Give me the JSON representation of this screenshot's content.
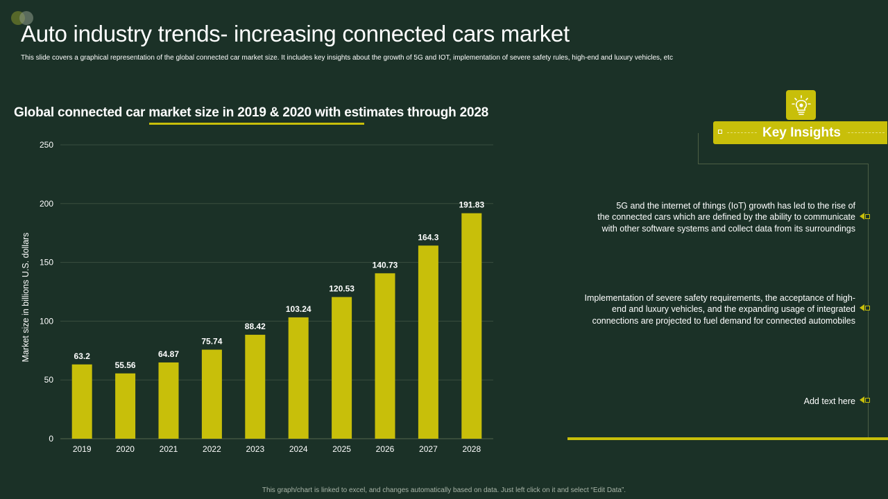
{
  "slide": {
    "title": "Auto industry trends- increasing connected cars market",
    "subtitle": "This slide covers a graphical representation of the global connected car market size. It includes key insights about the growth of 5G and IOT,  implementation  of severe safety rules, high-end and luxury vehicles, etc",
    "footer": "This graph/chart is linked to excel, and changes automatically based on data. Just left click on it and select “Edit Data”."
  },
  "chart_data": {
    "type": "bar",
    "title": "Global connected car market size in 2019 & 2020 with estimates through 2028",
    "xlabel": "",
    "ylabel": "Market size in billions U.S. dollars",
    "categories": [
      "2019",
      "2020",
      "2021",
      "2022",
      "2023",
      "2024",
      "2025",
      "2026",
      "2027",
      "2028"
    ],
    "values": [
      63.2,
      55.56,
      64.87,
      75.74,
      88.42,
      103.24,
      120.53,
      140.73,
      164.3,
      191.83
    ],
    "data_labels": [
      "63.2",
      "55.56",
      "64.87",
      "75.74",
      "88.42",
      "103.24",
      "120.53",
      "140.73",
      "164.3",
      "191.83"
    ],
    "yticks": [
      "0",
      "50",
      "100",
      "150",
      "200",
      "250"
    ],
    "ylim": [
      0,
      250
    ],
    "grid": true,
    "bar_color": "#c8bf0a"
  },
  "insights": {
    "header": "Key Insights",
    "icon": "lightbulb-gear-icon",
    "accent": "#c8bf0a",
    "items": [
      {
        "lines": [
          "5G and the internet of things (IoT)  growth  has led to the rise of",
          "the connected cars which are defined  by the ability to communicate",
          "with other software  systems and collect data from its surroundings"
        ]
      },
      {
        "lines": [
          "Implementation  of severe  safety requirements,  the acceptance  of high-",
          "end and luxury vehicles,  and the expanding  usage of integrated",
          "connections are projected to fuel demand  for connected automobiles"
        ]
      },
      {
        "lines": [
          "Add text here"
        ]
      }
    ]
  }
}
